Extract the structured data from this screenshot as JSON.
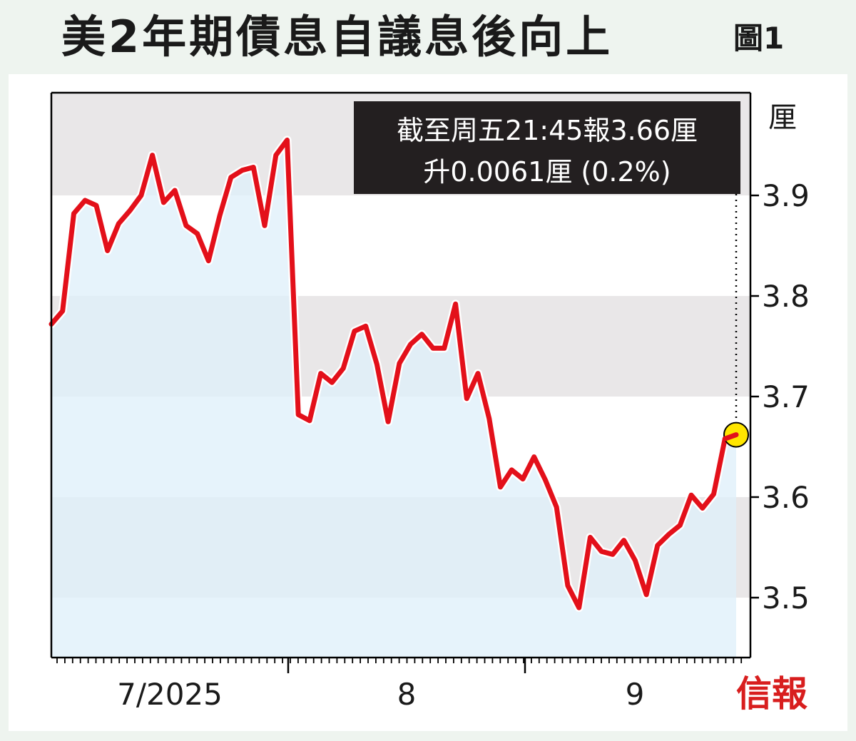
{
  "title": "美2年期債息自議息後向上",
  "figure_label": "圖1",
  "unit": "厘",
  "annotation": {
    "line1": "截至周五21:45報3.66厘",
    "line2": "升0.0061厘 (0.2%)"
  },
  "source_logo": "信報",
  "colors": {
    "line": "#e3101a",
    "fill": "#dff0fa",
    "band": "#e9e7e8",
    "annotation_bg": "#231f20",
    "marker": "#ffe600",
    "logo": "#d81e1e"
  },
  "chart_data": {
    "type": "line",
    "title": "美2年期債息自議息後向上",
    "xlabel": "",
    "ylabel": "厘",
    "ylim": [
      3.44,
      3.99
    ],
    "yticks": [
      "3.5",
      "3.6",
      "3.7",
      "3.8",
      "3.9"
    ],
    "ytick_values": [
      3.5,
      3.6,
      3.7,
      3.8,
      3.9
    ],
    "xtick_labels": [
      "7/2025",
      "8",
      "9"
    ],
    "grid_bands": true,
    "series": [
      {
        "values": [
          3.772,
          3.785,
          3.882,
          3.895,
          3.89,
          3.845,
          3.872,
          3.885,
          3.9,
          3.94,
          3.893,
          3.905,
          3.87,
          3.862,
          3.835,
          3.88,
          3.918,
          3.925,
          3.928,
          3.87,
          3.94,
          3.955,
          3.682,
          3.676,
          3.723,
          3.714,
          3.728,
          3.765,
          3.77,
          3.732,
          3.675,
          3.733,
          3.752,
          3.762,
          3.748,
          3.748,
          3.792,
          3.698,
          3.723,
          3.678,
          3.61,
          3.627,
          3.618,
          3.64,
          3.617,
          3.59,
          3.512,
          3.49,
          3.56,
          3.546,
          3.543,
          3.557,
          3.537,
          3.503,
          3.552,
          3.563,
          3.572,
          3.602,
          3.589,
          3.603,
          3.658,
          3.662
        ]
      }
    ],
    "last_value": 3.66
  }
}
